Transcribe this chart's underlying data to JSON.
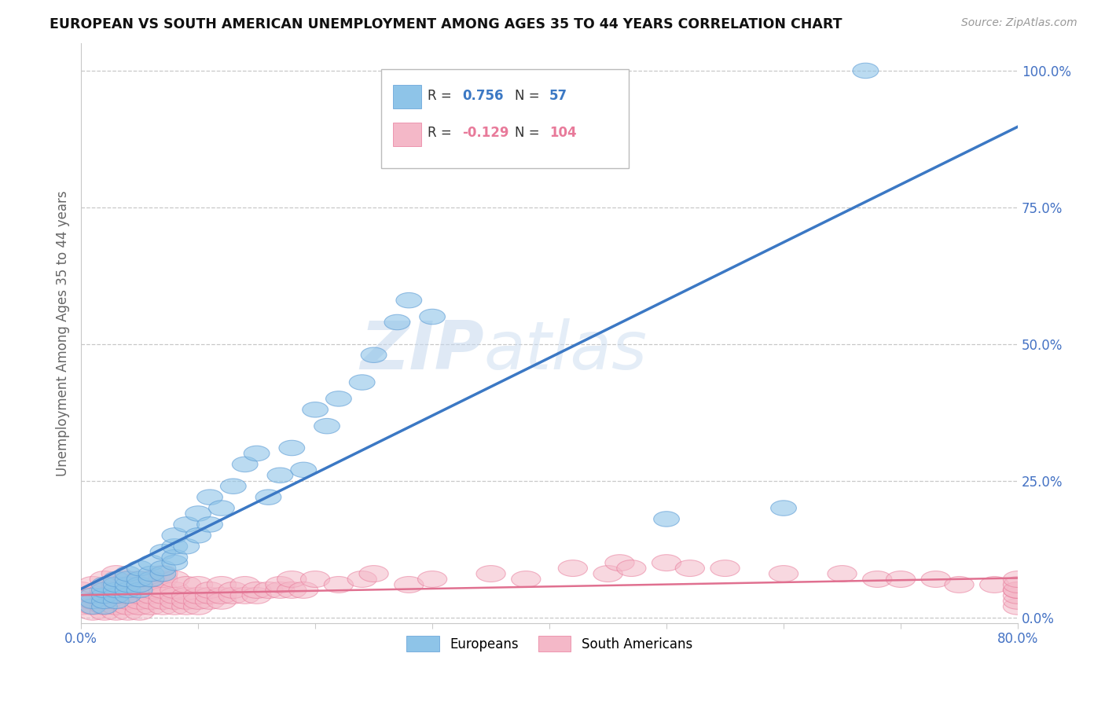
{
  "title": "EUROPEAN VS SOUTH AMERICAN UNEMPLOYMENT AMONG AGES 35 TO 44 YEARS CORRELATION CHART",
  "source": "Source: ZipAtlas.com",
  "ylabel": "Unemployment Among Ages 35 to 44 years",
  "xlim": [
    0.0,
    0.8
  ],
  "ylim": [
    -0.01,
    1.05
  ],
  "yticks": [
    0.0,
    0.25,
    0.5,
    0.75,
    1.0
  ],
  "ytick_labels": [
    "0.0%",
    "25.0%",
    "50.0%",
    "75.0%",
    "100.0%"
  ],
  "xticks": [
    0.0,
    0.1,
    0.2,
    0.3,
    0.4,
    0.5,
    0.6,
    0.7,
    0.8
  ],
  "xtick_labels": [
    "0.0%",
    "",
    "",
    "",
    "",
    "",
    "",
    "",
    "80.0%"
  ],
  "european_color": "#8ec4e8",
  "european_edge_color": "#5b9bd5",
  "south_american_color": "#f4b8c8",
  "south_american_edge_color": "#e87a9a",
  "european_line_color": "#3b78c4",
  "south_american_line_color": "#e07090",
  "watermark_zip": "ZIP",
  "watermark_atlas": "atlas",
  "legend_r_european": "0.756",
  "legend_n_european": "57",
  "legend_r_south_american": "-0.129",
  "legend_n_south_american": "104",
  "european_scatter_x": [
    0.01,
    0.01,
    0.01,
    0.02,
    0.02,
    0.02,
    0.02,
    0.02,
    0.03,
    0.03,
    0.03,
    0.03,
    0.03,
    0.04,
    0.04,
    0.04,
    0.04,
    0.04,
    0.05,
    0.05,
    0.05,
    0.05,
    0.06,
    0.06,
    0.06,
    0.07,
    0.07,
    0.07,
    0.08,
    0.08,
    0.08,
    0.08,
    0.09,
    0.09,
    0.1,
    0.1,
    0.11,
    0.11,
    0.12,
    0.13,
    0.14,
    0.15,
    0.16,
    0.17,
    0.18,
    0.19,
    0.2,
    0.21,
    0.22,
    0.24,
    0.25,
    0.27,
    0.28,
    0.3,
    0.5,
    0.6,
    0.67
  ],
  "european_scatter_y": [
    0.02,
    0.03,
    0.04,
    0.02,
    0.03,
    0.04,
    0.05,
    0.06,
    0.03,
    0.04,
    0.05,
    0.06,
    0.07,
    0.04,
    0.05,
    0.06,
    0.07,
    0.08,
    0.05,
    0.06,
    0.07,
    0.09,
    0.07,
    0.08,
    0.1,
    0.08,
    0.09,
    0.12,
    0.1,
    0.11,
    0.13,
    0.15,
    0.13,
    0.17,
    0.15,
    0.19,
    0.17,
    0.22,
    0.2,
    0.24,
    0.28,
    0.3,
    0.22,
    0.26,
    0.31,
    0.27,
    0.38,
    0.35,
    0.4,
    0.43,
    0.48,
    0.54,
    0.58,
    0.55,
    0.18,
    0.2,
    1.0
  ],
  "south_american_scatter_x": [
    0.0,
    0.0,
    0.0,
    0.01,
    0.01,
    0.01,
    0.01,
    0.01,
    0.02,
    0.02,
    0.02,
    0.02,
    0.02,
    0.02,
    0.03,
    0.03,
    0.03,
    0.03,
    0.03,
    0.03,
    0.03,
    0.04,
    0.04,
    0.04,
    0.04,
    0.04,
    0.04,
    0.05,
    0.05,
    0.05,
    0.05,
    0.05,
    0.05,
    0.06,
    0.06,
    0.06,
    0.06,
    0.06,
    0.07,
    0.07,
    0.07,
    0.07,
    0.07,
    0.07,
    0.08,
    0.08,
    0.08,
    0.08,
    0.08,
    0.09,
    0.09,
    0.09,
    0.09,
    0.1,
    0.1,
    0.1,
    0.1,
    0.11,
    0.11,
    0.11,
    0.12,
    0.12,
    0.12,
    0.13,
    0.13,
    0.14,
    0.14,
    0.15,
    0.15,
    0.16,
    0.17,
    0.17,
    0.18,
    0.18,
    0.19,
    0.2,
    0.22,
    0.24,
    0.25,
    0.28,
    0.3,
    0.35,
    0.38,
    0.42,
    0.45,
    0.46,
    0.47,
    0.5,
    0.52,
    0.55,
    0.6,
    0.65,
    0.68,
    0.7,
    0.73,
    0.75,
    0.78,
    0.8,
    0.8,
    0.8,
    0.8,
    0.8,
    0.8,
    0.8
  ],
  "south_american_scatter_y": [
    0.02,
    0.03,
    0.05,
    0.01,
    0.02,
    0.03,
    0.04,
    0.06,
    0.01,
    0.02,
    0.03,
    0.04,
    0.05,
    0.07,
    0.01,
    0.02,
    0.03,
    0.04,
    0.05,
    0.06,
    0.08,
    0.01,
    0.02,
    0.03,
    0.04,
    0.06,
    0.07,
    0.01,
    0.02,
    0.03,
    0.04,
    0.05,
    0.07,
    0.02,
    0.03,
    0.04,
    0.05,
    0.07,
    0.02,
    0.03,
    0.04,
    0.05,
    0.07,
    0.08,
    0.02,
    0.03,
    0.04,
    0.05,
    0.07,
    0.02,
    0.03,
    0.04,
    0.06,
    0.02,
    0.03,
    0.04,
    0.06,
    0.03,
    0.04,
    0.05,
    0.03,
    0.04,
    0.06,
    0.04,
    0.05,
    0.04,
    0.06,
    0.04,
    0.05,
    0.05,
    0.05,
    0.06,
    0.05,
    0.07,
    0.05,
    0.07,
    0.06,
    0.07,
    0.08,
    0.06,
    0.07,
    0.08,
    0.07,
    0.09,
    0.08,
    0.1,
    0.09,
    0.1,
    0.09,
    0.09,
    0.08,
    0.08,
    0.07,
    0.07,
    0.07,
    0.06,
    0.06,
    0.02,
    0.03,
    0.04,
    0.05,
    0.05,
    0.06,
    0.07
  ]
}
